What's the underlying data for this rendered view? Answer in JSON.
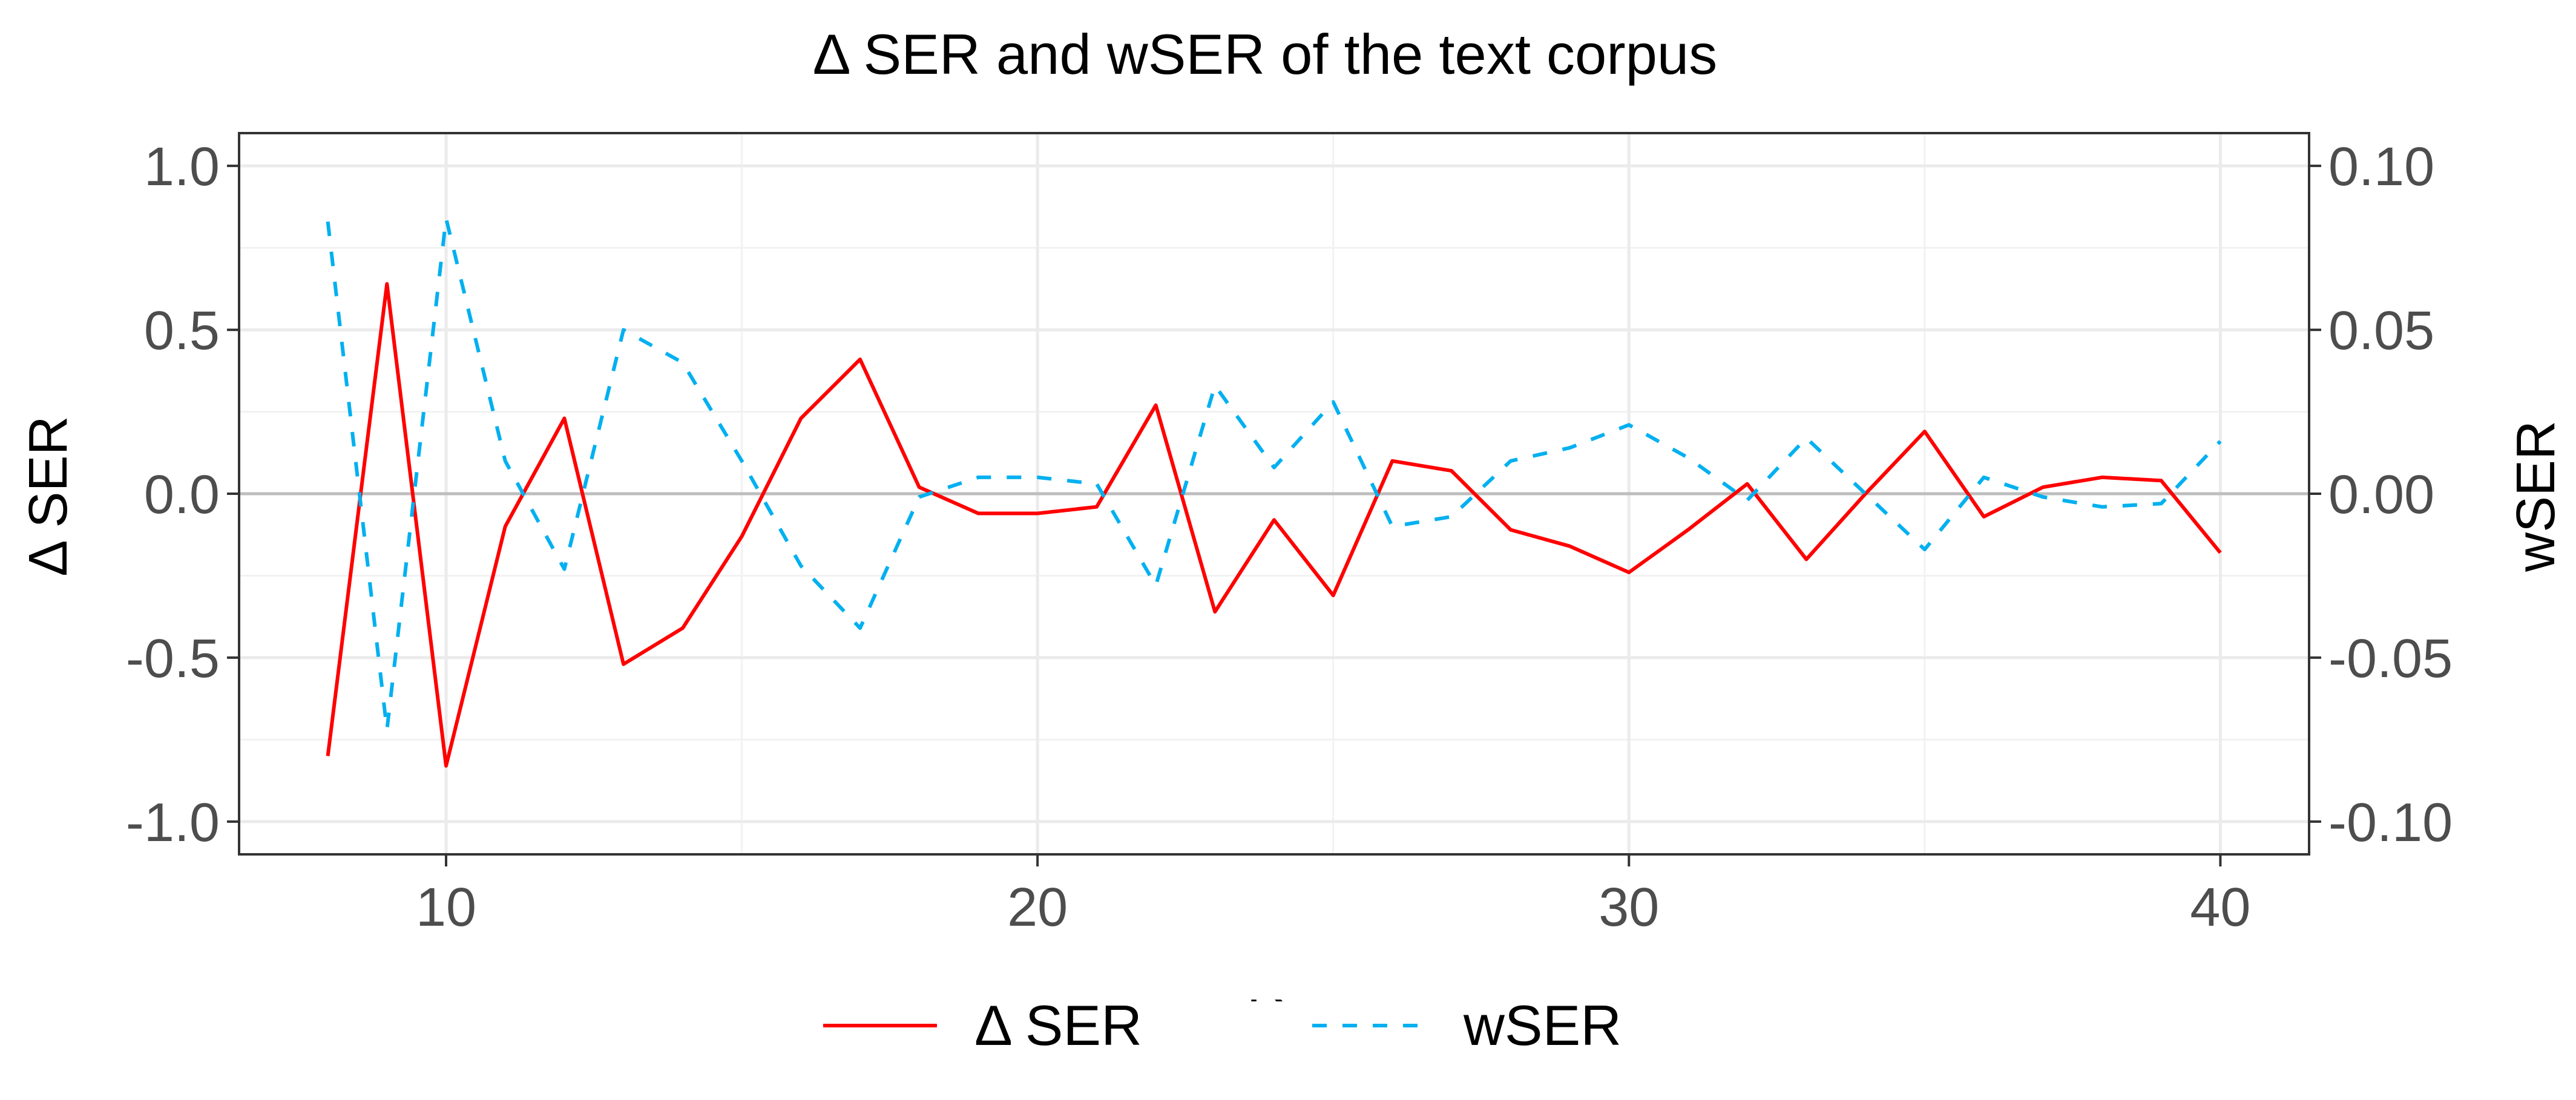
{
  "chart_data": {
    "type": "line",
    "title": "Δ SER and wSER of the text corpus",
    "xlabel": "K",
    "ylabel": "Δ SER",
    "y2label": "wSER",
    "xlim": [
      6.5,
      41.5
    ],
    "ylim": [
      -1.1,
      1.1
    ],
    "y2lim": [
      -0.11,
      0.11
    ],
    "x_ticks": [
      10,
      20,
      30,
      40
    ],
    "y_ticks": [
      -1.0,
      -0.5,
      0.0,
      0.5,
      1.0
    ],
    "y_tick_labels": [
      "-1.0",
      "-0.5",
      "0.0",
      "0.5",
      "1.0"
    ],
    "y2_ticks": [
      -0.1,
      -0.05,
      0.0,
      0.05,
      0.1
    ],
    "y2_tick_labels": [
      "-0.10",
      "-0.05",
      "0.00",
      "0.05",
      "0.10"
    ],
    "grid": true,
    "reference_line": 0,
    "legend_position": "bottom",
    "x": [
      8,
      9,
      10,
      11,
      12,
      13,
      14,
      15,
      16,
      17,
      18,
      19,
      20,
      21,
      22,
      23,
      24,
      25,
      26,
      27,
      28,
      29,
      30,
      31,
      32,
      33,
      34,
      35,
      36,
      37,
      38,
      39,
      40
    ],
    "series": [
      {
        "name": "Δ SER",
        "axis": "left",
        "color": "#ff0000",
        "style": "solid",
        "values": [
          -0.8,
          0.64,
          -0.83,
          -0.1,
          0.23,
          -0.52,
          -0.41,
          -0.13,
          0.23,
          0.41,
          0.02,
          -0.06,
          -0.06,
          -0.04,
          0.27,
          -0.36,
          -0.08,
          -0.31,
          0.1,
          0.07,
          -0.11,
          -0.16,
          -0.24,
          -0.11,
          0.03,
          -0.2,
          0.0,
          0.19,
          -0.07,
          0.02,
          0.05,
          0.04,
          -0.18
        ]
      },
      {
        "name": "wSER",
        "axis": "right",
        "color": "#00b0f0",
        "style": "dashed",
        "values": [
          0.083,
          -0.072,
          0.084,
          0.01,
          -0.023,
          0.05,
          0.04,
          0.01,
          -0.022,
          -0.041,
          -0.001,
          0.005,
          0.005,
          0.003,
          -0.028,
          0.033,
          0.008,
          0.028,
          -0.01,
          -0.007,
          0.01,
          0.014,
          0.021,
          0.011,
          -0.002,
          0.017,
          0.0,
          -0.017,
          0.005,
          -0.001,
          -0.004,
          -0.003,
          0.016
        ]
      }
    ]
  }
}
